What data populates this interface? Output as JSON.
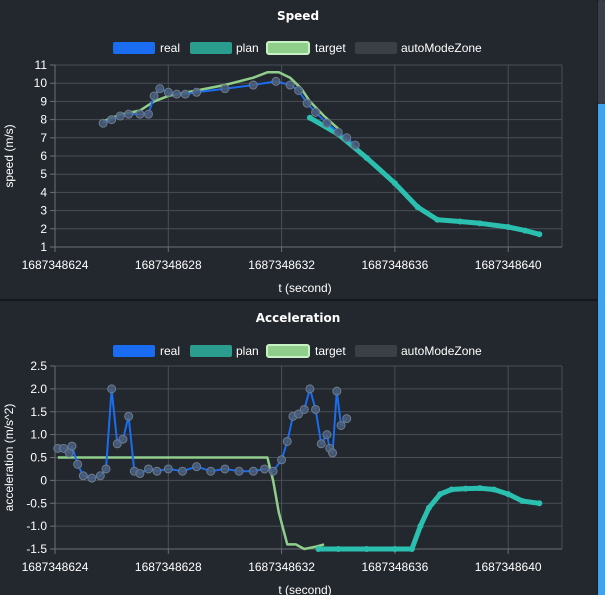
{
  "chart_data": [
    {
      "type": "line",
      "title": "Speed",
      "xlabel": "t (second)",
      "ylabel": "speed (m/s)",
      "xlim": [
        1687348624,
        1687348641.9
      ],
      "ylim": [
        1,
        11
      ],
      "xticks": [
        "1687348624",
        "1687348628",
        "1687348632",
        "1687348636",
        "1687348640"
      ],
      "yticks": [
        "1",
        "2",
        "3",
        "4",
        "5",
        "6",
        "7",
        "8",
        "9",
        "10",
        "11"
      ],
      "grid": true,
      "legend_placement": "top-center",
      "legend": [
        "real",
        "plan",
        "target",
        "autoModeZone"
      ],
      "series": [
        {
          "name": "real",
          "color": "#1a6df0",
          "points": [
            [
              1687348625.7,
              7.8
            ],
            [
              1687348626.0,
              8.0
            ],
            [
              1687348626.3,
              8.2
            ],
            [
              1687348626.6,
              8.3
            ],
            [
              1687348627.0,
              8.3
            ],
            [
              1687348627.3,
              8.3
            ],
            [
              1687348627.5,
              9.3
            ],
            [
              1687348627.7,
              9.7
            ],
            [
              1687348628.0,
              9.5
            ],
            [
              1687348628.3,
              9.4
            ],
            [
              1687348628.6,
              9.4
            ],
            [
              1687348629.0,
              9.5
            ],
            [
              1687348630.0,
              9.7
            ],
            [
              1687348631.0,
              9.9
            ],
            [
              1687348631.8,
              10.1
            ],
            [
              1687348632.3,
              9.9
            ],
            [
              1687348632.6,
              9.6
            ],
            [
              1687348632.9,
              8.9
            ],
            [
              1687348633.2,
              8.4
            ],
            [
              1687348633.6,
              7.8
            ],
            [
              1687348634.0,
              7.3
            ],
            [
              1687348634.3,
              7.0
            ],
            [
              1687348634.6,
              6.6
            ]
          ]
        },
        {
          "name": "plan",
          "color": "#2bbfb0",
          "points": [
            [
              1687348633.0,
              8.1
            ],
            [
              1687348634.0,
              7.2
            ],
            [
              1687348635.0,
              5.9
            ],
            [
              1687348636.0,
              4.5
            ],
            [
              1687348636.8,
              3.2
            ],
            [
              1687348637.5,
              2.5
            ],
            [
              1687348638.3,
              2.4
            ],
            [
              1687348639.0,
              2.3
            ],
            [
              1687348640.0,
              2.1
            ],
            [
              1687348640.6,
              1.9
            ],
            [
              1687348641.1,
              1.7
            ]
          ]
        },
        {
          "name": "target",
          "color": "#8fce8b",
          "points": [
            [
              1687348625.7,
              7.9
            ],
            [
              1687348626.0,
              8.1
            ],
            [
              1687348626.4,
              8.3
            ],
            [
              1687348627.0,
              8.5
            ],
            [
              1687348627.5,
              9.0
            ],
            [
              1687348628.0,
              9.3
            ],
            [
              1687348629.0,
              9.6
            ],
            [
              1687348630.0,
              9.9
            ],
            [
              1687348631.0,
              10.3
            ],
            [
              1687348631.5,
              10.6
            ],
            [
              1687348631.9,
              10.6
            ],
            [
              1687348632.3,
              10.3
            ],
            [
              1687348632.7,
              9.7
            ],
            [
              1687348633.0,
              9.0
            ],
            [
              1687348633.5,
              8.2
            ],
            [
              1687348634.0,
              7.5
            ]
          ]
        }
      ]
    },
    {
      "type": "line",
      "title": "Acceleration",
      "xlabel": "t (second)",
      "ylabel": "acceleration (m/s^2)",
      "xlim": [
        1687348624,
        1687348641.9
      ],
      "ylim": [
        -1.5,
        2.5
      ],
      "xticks": [
        "1687348624",
        "1687348628",
        "1687348632",
        "1687348636",
        "1687348640"
      ],
      "yticks": [
        "-1.5",
        "-1.0",
        "-0.5",
        "0",
        "0.5",
        "1.0",
        "1.5",
        "2.0",
        "2.5"
      ],
      "grid": true,
      "legend_placement": "top-center",
      "legend": [
        "real",
        "plan",
        "target",
        "autoModeZone"
      ],
      "series": [
        {
          "name": "real",
          "color": "#1a6df0",
          "points": [
            [
              1687348624.1,
              0.7
            ],
            [
              1687348624.3,
              0.7
            ],
            [
              1687348624.5,
              0.6
            ],
            [
              1687348624.6,
              0.75
            ],
            [
              1687348624.8,
              0.35
            ],
            [
              1687348625.0,
              0.1
            ],
            [
              1687348625.3,
              0.05
            ],
            [
              1687348625.6,
              0.1
            ],
            [
              1687348625.8,
              0.25
            ],
            [
              1687348626.0,
              2.0
            ],
            [
              1687348626.2,
              0.8
            ],
            [
              1687348626.4,
              0.9
            ],
            [
              1687348626.6,
              1.4
            ],
            [
              1687348626.8,
              0.2
            ],
            [
              1687348627.0,
              0.15
            ],
            [
              1687348627.3,
              0.25
            ],
            [
              1687348627.6,
              0.2
            ],
            [
              1687348628.0,
              0.25
            ],
            [
              1687348628.5,
              0.2
            ],
            [
              1687348629.0,
              0.3
            ],
            [
              1687348629.5,
              0.2
            ],
            [
              1687348630.0,
              0.25
            ],
            [
              1687348630.5,
              0.2
            ],
            [
              1687348631.0,
              0.2
            ],
            [
              1687348631.4,
              0.25
            ],
            [
              1687348631.7,
              0.2
            ],
            [
              1687348632.0,
              0.45
            ],
            [
              1687348632.2,
              0.85
            ],
            [
              1687348632.4,
              1.4
            ],
            [
              1687348632.6,
              1.45
            ],
            [
              1687348632.8,
              1.55
            ],
            [
              1687348633.0,
              2.0
            ],
            [
              1687348633.2,
              1.55
            ],
            [
              1687348633.4,
              0.8
            ],
            [
              1687348633.6,
              1.0
            ],
            [
              1687348633.7,
              0.7
            ],
            [
              1687348633.8,
              0.6
            ],
            [
              1687348633.95,
              1.95
            ],
            [
              1687348634.1,
              1.2
            ],
            [
              1687348634.3,
              1.35
            ]
          ]
        },
        {
          "name": "plan",
          "color": "#2bbfb0",
          "points": [
            [
              1687348633.3,
              -1.5
            ],
            [
              1687348634.0,
              -1.5
            ],
            [
              1687348635.0,
              -1.5
            ],
            [
              1687348636.0,
              -1.5
            ],
            [
              1687348636.6,
              -1.5
            ],
            [
              1687348636.9,
              -1.0
            ],
            [
              1687348637.2,
              -0.6
            ],
            [
              1687348637.6,
              -0.3
            ],
            [
              1687348638.0,
              -0.2
            ],
            [
              1687348638.5,
              -0.18
            ],
            [
              1687348639.0,
              -0.17
            ],
            [
              1687348639.5,
              -0.2
            ],
            [
              1687348640.0,
              -0.3
            ],
            [
              1687348640.5,
              -0.45
            ],
            [
              1687348641.1,
              -0.5
            ]
          ]
        },
        {
          "name": "target",
          "color": "#8fce8b",
          "points": [
            [
              1687348624.1,
              0.5
            ],
            [
              1687348625.0,
              0.5
            ],
            [
              1687348626.0,
              0.5
            ],
            [
              1687348627.0,
              0.5
            ],
            [
              1687348628.0,
              0.5
            ],
            [
              1687348629.0,
              0.5
            ],
            [
              1687348630.0,
              0.5
            ],
            [
              1687348631.0,
              0.5
            ],
            [
              1687348631.5,
              0.5
            ],
            [
              1687348631.7,
              0.0
            ],
            [
              1687348631.9,
              -0.7
            ],
            [
              1687348632.2,
              -1.4
            ],
            [
              1687348632.5,
              -1.4
            ],
            [
              1687348632.8,
              -1.5
            ],
            [
              1687348633.2,
              -1.45
            ],
            [
              1687348633.5,
              -1.4
            ]
          ]
        }
      ]
    }
  ]
}
